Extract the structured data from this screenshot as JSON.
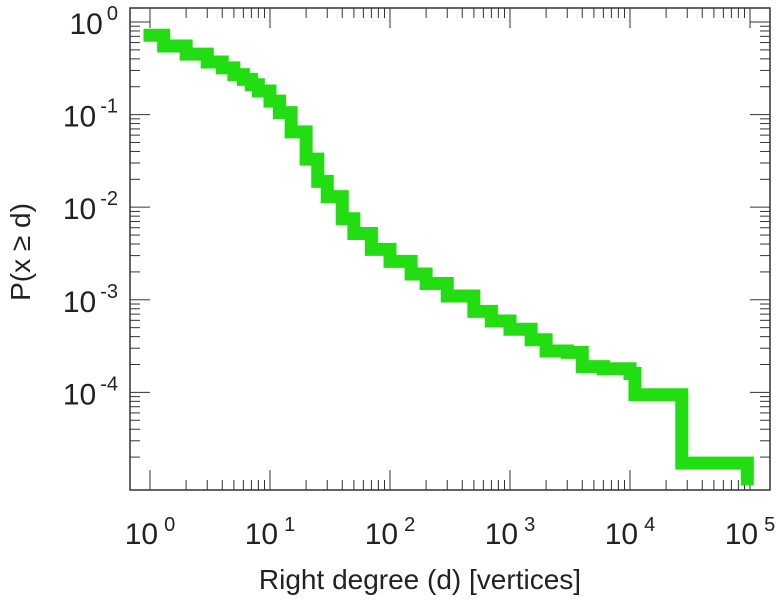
{
  "chart_data": {
    "type": "line",
    "title": "",
    "xlabel": "Right degree (d) [vertices]",
    "ylabel": "P(x ≥ d)",
    "x_scale": "log",
    "y_scale": "log",
    "xlim": [
      1,
      100000
    ],
    "ylim": [
      1.16e-05,
      1
    ],
    "grid": false,
    "legend": "none",
    "x_ticks": [
      {
        "value": 1,
        "base": "10",
        "exp": "0"
      },
      {
        "value": 10,
        "base": "10",
        "exp": "1"
      },
      {
        "value": 100,
        "base": "10",
        "exp": "2"
      },
      {
        "value": 1000,
        "base": "10",
        "exp": "3"
      },
      {
        "value": 10000,
        "base": "10",
        "exp": "4"
      },
      {
        "value": 100000,
        "base": "10",
        "exp": "5"
      }
    ],
    "y_ticks": [
      {
        "value": 1,
        "base": "10",
        "exp": "0"
      },
      {
        "value": 0.1,
        "base": "10",
        "exp": "-1"
      },
      {
        "value": 0.01,
        "base": "10",
        "exp": "-2"
      },
      {
        "value": 0.001,
        "base": "10",
        "exp": "-3"
      },
      {
        "value": 0.0001,
        "base": "10",
        "exp": "-4"
      }
    ],
    "series": [
      {
        "color": "#22dd11",
        "step": true,
        "points": [
          [
            1,
            0.72
          ],
          [
            1.3,
            0.55
          ],
          [
            2,
            0.45
          ],
          [
            3,
            0.37
          ],
          [
            4,
            0.32
          ],
          [
            5,
            0.27
          ],
          [
            6,
            0.24
          ],
          [
            7,
            0.21
          ],
          [
            8,
            0.18
          ],
          [
            10,
            0.14
          ],
          [
            12,
            0.105
          ],
          [
            15,
            0.065
          ],
          [
            20,
            0.033
          ],
          [
            25,
            0.019
          ],
          [
            30,
            0.013
          ],
          [
            40,
            0.0075
          ],
          [
            50,
            0.0052
          ],
          [
            70,
            0.0035
          ],
          [
            100,
            0.0026
          ],
          [
            150,
            0.0019
          ],
          [
            200,
            0.0015
          ],
          [
            300,
            0.0011
          ],
          [
            500,
            0.00075
          ],
          [
            700,
            0.00059
          ],
          [
            1000,
            0.00048
          ],
          [
            1500,
            0.00037
          ],
          [
            2000,
            0.00028
          ],
          [
            3000,
            0.00027
          ],
          [
            4000,
            0.00019
          ],
          [
            6000,
            0.00018
          ],
          [
            10000,
            0.00016
          ],
          [
            11000,
            9.42e-05
          ],
          [
            25000,
            9.42e-05
          ],
          [
            27000,
            1.72e-05
          ],
          [
            90000,
            1.72e-05
          ],
          [
            95000,
            1.16e-05
          ]
        ]
      }
    ]
  }
}
